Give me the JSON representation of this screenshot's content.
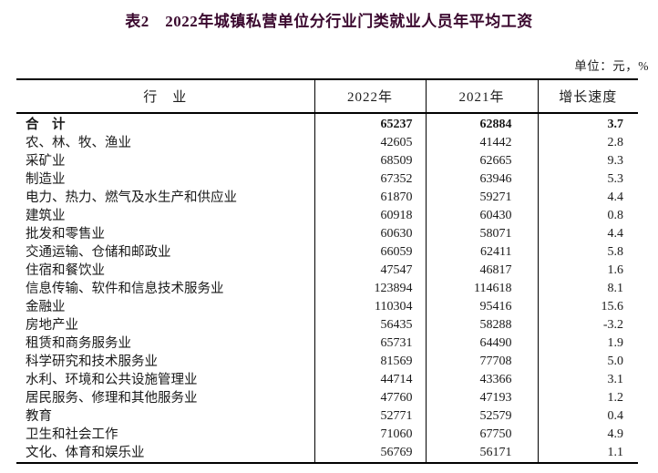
{
  "title": "表2　2022年城镇私营单位分行业门类就业人员年平均工资",
  "unit_note": "单位：元，%",
  "colors": {
    "title": "#3a082e",
    "text": "#1a1a1a",
    "border": "#000000"
  },
  "table": {
    "headers": [
      "行　业",
      "2022年",
      "2021年",
      "增长速度"
    ],
    "rows": [
      {
        "industry": "合　计",
        "y2022": "65237",
        "y2021": "62884",
        "growth": "3.7",
        "bold": true
      },
      {
        "industry": "农、林、牧、渔业",
        "y2022": "42605",
        "y2021": "41442",
        "growth": "2.8",
        "bold": false
      },
      {
        "industry": "采矿业",
        "y2022": "68509",
        "y2021": "62665",
        "growth": "9.3",
        "bold": false
      },
      {
        "industry": "制造业",
        "y2022": "67352",
        "y2021": "63946",
        "growth": "5.3",
        "bold": false
      },
      {
        "industry": "电力、热力、燃气及水生产和供应业",
        "y2022": "61870",
        "y2021": "59271",
        "growth": "4.4",
        "bold": false
      },
      {
        "industry": "建筑业",
        "y2022": "60918",
        "y2021": "60430",
        "growth": "0.8",
        "bold": false
      },
      {
        "industry": "批发和零售业",
        "y2022": "60630",
        "y2021": "58071",
        "growth": "4.4",
        "bold": false
      },
      {
        "industry": "交通运输、仓储和邮政业",
        "y2022": "66059",
        "y2021": "62411",
        "growth": "5.8",
        "bold": false
      },
      {
        "industry": "住宿和餐饮业",
        "y2022": "47547",
        "y2021": "46817",
        "growth": "1.6",
        "bold": false
      },
      {
        "industry": "信息传输、软件和信息技术服务业",
        "y2022": "123894",
        "y2021": "114618",
        "growth": "8.1",
        "bold": false
      },
      {
        "industry": "金融业",
        "y2022": "110304",
        "y2021": "95416",
        "growth": "15.6",
        "bold": false
      },
      {
        "industry": "房地产业",
        "y2022": "56435",
        "y2021": "58288",
        "growth": "-3.2",
        "bold": false
      },
      {
        "industry": "租赁和商务服务业",
        "y2022": "65731",
        "y2021": "64490",
        "growth": "1.9",
        "bold": false
      },
      {
        "industry": "科学研究和技术服务业",
        "y2022": "81569",
        "y2021": "77708",
        "growth": "5.0",
        "bold": false
      },
      {
        "industry": "水利、环境和公共设施管理业",
        "y2022": "44714",
        "y2021": "43366",
        "growth": "3.1",
        "bold": false
      },
      {
        "industry": "居民服务、修理和其他服务业",
        "y2022": "47760",
        "y2021": "47193",
        "growth": "1.2",
        "bold": false
      },
      {
        "industry": "教育",
        "y2022": "52771",
        "y2021": "52579",
        "growth": "0.4",
        "bold": false
      },
      {
        "industry": "卫生和社会工作",
        "y2022": "71060",
        "y2021": "67750",
        "growth": "4.9",
        "bold": false
      },
      {
        "industry": "文化、体育和娱乐业",
        "y2022": "56769",
        "y2021": "56171",
        "growth": "1.1",
        "bold": false
      }
    ]
  }
}
